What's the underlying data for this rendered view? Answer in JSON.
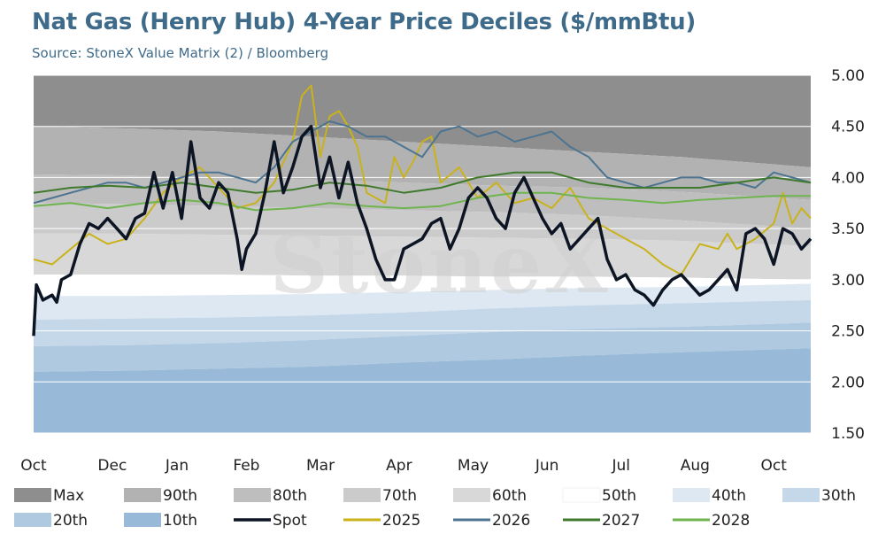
{
  "chart_data": {
    "type": "area",
    "title": "Nat Gas (Henry Hub) 4-Year Price Deciles ($/mmBtu)",
    "subtitle": "Source: StoneX Value Matrix (2) / Bloomberg",
    "watermark": "StoneX",
    "ylim": [
      1.5,
      5.0
    ],
    "y_ticks": [
      "5.00",
      "4.50",
      "4.00",
      "3.50",
      "3.00",
      "2.50",
      "2.00",
      "1.50"
    ],
    "x_tick_labels": [
      "Oct",
      "Dec",
      "Jan",
      "Feb",
      "Mar",
      "Apr",
      "May",
      "Jun",
      "Jul",
      "Aug",
      "Oct"
    ],
    "x_tick_positions": [
      0,
      8.5,
      15.5,
      23,
      31,
      39.5,
      47.5,
      55.5,
      63.5,
      71.5,
      80
    ],
    "x_range": [
      0,
      84
    ],
    "grid": true,
    "legend_position": "bottom",
    "legend": [
      "Max",
      "90th",
      "80th",
      "70th",
      "60th",
      "50th",
      "40th",
      "30th",
      "20th",
      "10th",
      "Spot",
      "2025",
      "2026",
      "2027",
      "2028"
    ],
    "bands": [
      {
        "name": "Max",
        "color": "#8e8e8e",
        "x": [
          0,
          84
        ],
        "y": [
          5.0,
          5.0
        ]
      },
      {
        "name": "90th",
        "color": "#b2b2b2",
        "x": [
          0,
          10,
          20,
          30,
          40,
          50,
          60,
          70,
          84
        ],
        "y": [
          4.5,
          4.48,
          4.45,
          4.4,
          4.35,
          4.3,
          4.25,
          4.2,
          4.1
        ]
      },
      {
        "name": "80th",
        "color": "#bebebe",
        "x": [
          0,
          10,
          20,
          30,
          40,
          50,
          60,
          70,
          84
        ],
        "y": [
          4.03,
          4.02,
          4.0,
          3.98,
          3.95,
          3.92,
          3.9,
          3.86,
          3.78
        ]
      },
      {
        "name": "70th",
        "color": "#cbcbcb",
        "x": [
          0,
          10,
          20,
          30,
          40,
          50,
          60,
          70,
          84
        ],
        "y": [
          3.75,
          3.74,
          3.72,
          3.7,
          3.68,
          3.66,
          3.63,
          3.58,
          3.5
        ]
      },
      {
        "name": "60th",
        "color": "#d8d8d8",
        "x": [
          0,
          10,
          20,
          30,
          40,
          50,
          60,
          70,
          84
        ],
        "y": [
          3.45,
          3.45,
          3.44,
          3.43,
          3.42,
          3.41,
          3.4,
          3.38,
          3.33
        ]
      },
      {
        "name": "50th",
        "color": "#ffffff",
        "x": [
          0,
          10,
          20,
          30,
          40,
          50,
          60,
          70,
          84
        ],
        "y": [
          3.05,
          3.05,
          3.05,
          3.04,
          3.04,
          3.03,
          3.03,
          3.02,
          3.0
        ]
      },
      {
        "name": "40th",
        "color": "#dde8f2",
        "x": [
          0,
          10,
          20,
          30,
          40,
          50,
          60,
          70,
          84
        ],
        "y": [
          2.84,
          2.84,
          2.85,
          2.86,
          2.88,
          2.9,
          2.92,
          2.93,
          2.96
        ]
      },
      {
        "name": "30th",
        "color": "#c5d8e9",
        "x": [
          0,
          10,
          20,
          30,
          40,
          50,
          60,
          70,
          84
        ],
        "y": [
          2.61,
          2.62,
          2.63,
          2.65,
          2.68,
          2.72,
          2.75,
          2.77,
          2.8
        ]
      },
      {
        "name": "20th",
        "color": "#afc9e1",
        "x": [
          0,
          10,
          20,
          30,
          40,
          50,
          60,
          70,
          84
        ],
        "y": [
          2.35,
          2.36,
          2.38,
          2.41,
          2.45,
          2.49,
          2.52,
          2.54,
          2.58
        ]
      },
      {
        "name": "10th",
        "color": "#98b9d8",
        "x": [
          0,
          10,
          20,
          30,
          40,
          50,
          60,
          70,
          84
        ],
        "y": [
          2.1,
          2.11,
          2.13,
          2.15,
          2.19,
          2.22,
          2.26,
          2.29,
          2.33
        ]
      }
    ],
    "series": [
      {
        "name": "Spot",
        "color": "#0d1524",
        "width": 3.5,
        "x": [
          0,
          0.3,
          1,
          2,
          2.5,
          3,
          4,
          5,
          6,
          7,
          8,
          9,
          10,
          11,
          12,
          13,
          14,
          15,
          16,
          17,
          18,
          19,
          20,
          21,
          22,
          22.5,
          23,
          24,
          25,
          26,
          27,
          28,
          29,
          30,
          31,
          32,
          33,
          34,
          35,
          36,
          37,
          38,
          39,
          40,
          41,
          42,
          43,
          44,
          45,
          46,
          47,
          48,
          49,
          50,
          51,
          52,
          53,
          54,
          55,
          56,
          57,
          58,
          59,
          60,
          61,
          62,
          63,
          64,
          65,
          66,
          67,
          68,
          69,
          70,
          71,
          72,
          73,
          74,
          75,
          76,
          77,
          78,
          79,
          80,
          81,
          82,
          83,
          84
        ],
        "y": [
          2.45,
          2.95,
          2.8,
          2.85,
          2.78,
          3.0,
          3.05,
          3.35,
          3.55,
          3.5,
          3.6,
          3.5,
          3.4,
          3.6,
          3.65,
          4.05,
          3.7,
          4.05,
          3.6,
          4.35,
          3.8,
          3.7,
          3.95,
          3.85,
          3.4,
          3.1,
          3.3,
          3.45,
          3.85,
          4.35,
          3.85,
          4.1,
          4.4,
          4.5,
          3.9,
          4.2,
          3.8,
          4.15,
          3.75,
          3.5,
          3.2,
          3.0,
          3.0,
          3.3,
          3.35,
          3.4,
          3.55,
          3.6,
          3.3,
          3.5,
          3.8,
          3.9,
          3.8,
          3.6,
          3.5,
          3.85,
          4.0,
          3.8,
          3.6,
          3.45,
          3.55,
          3.3,
          3.4,
          3.5,
          3.6,
          3.2,
          3.0,
          3.05,
          2.9,
          2.85,
          2.75,
          2.9,
          3.0,
          3.05,
          2.95,
          2.85,
          2.9,
          3.0,
          3.1,
          2.9,
          3.45,
          3.5,
          3.4,
          3.15,
          3.5,
          3.45,
          3.3,
          3.4
        ],
        "ylim_note": ""
      },
      {
        "name": "2025",
        "color": "#c9b21b",
        "width": 2,
        "x": [
          0,
          2,
          4,
          6,
          8,
          10,
          12,
          14,
          16,
          18,
          20,
          22,
          24,
          26,
          28,
          29,
          30,
          31,
          32,
          33,
          34,
          35,
          36,
          37,
          38,
          39,
          40,
          41,
          42,
          43,
          44,
          46,
          48,
          50,
          52,
          54,
          56,
          58,
          60,
          62,
          64,
          66,
          68,
          70,
          72,
          74,
          75,
          76,
          78,
          80,
          81,
          82,
          83,
          84
        ],
        "y": [
          3.2,
          3.15,
          3.3,
          3.45,
          3.35,
          3.4,
          3.6,
          3.85,
          4.0,
          4.1,
          3.9,
          3.7,
          3.75,
          3.95,
          4.35,
          4.8,
          4.9,
          4.2,
          4.6,
          4.65,
          4.5,
          4.3,
          3.85,
          3.8,
          3.75,
          4.2,
          4.0,
          4.15,
          4.35,
          4.4,
          3.95,
          4.1,
          3.8,
          3.95,
          3.75,
          3.8,
          3.7,
          3.9,
          3.6,
          3.5,
          3.4,
          3.3,
          3.15,
          3.05,
          3.35,
          3.3,
          3.45,
          3.3,
          3.4,
          3.55,
          3.85,
          3.55,
          3.7,
          3.6
        ]
      },
      {
        "name": "2026",
        "color": "#4d7491",
        "width": 2,
        "x": [
          0,
          2,
          4,
          6,
          8,
          10,
          12,
          14,
          16,
          18,
          20,
          22,
          24,
          26,
          28,
          30,
          32,
          34,
          36,
          38,
          40,
          42,
          44,
          46,
          48,
          50,
          52,
          54,
          56,
          58,
          60,
          62,
          64,
          66,
          68,
          70,
          72,
          74,
          76,
          78,
          80,
          82,
          84
        ],
        "y": [
          3.75,
          3.8,
          3.85,
          3.9,
          3.95,
          3.95,
          3.9,
          3.95,
          4.0,
          4.05,
          4.05,
          4.0,
          3.95,
          4.1,
          4.35,
          4.45,
          4.55,
          4.5,
          4.4,
          4.4,
          4.3,
          4.2,
          4.45,
          4.5,
          4.4,
          4.45,
          4.35,
          4.4,
          4.45,
          4.3,
          4.2,
          4.0,
          3.95,
          3.9,
          3.95,
          4.0,
          4.0,
          3.95,
          3.95,
          3.9,
          4.05,
          4.0,
          3.95
        ]
      },
      {
        "name": "2027",
        "color": "#3f7a2c",
        "width": 2,
        "x": [
          0,
          4,
          8,
          12,
          16,
          20,
          24,
          28,
          32,
          36,
          40,
          44,
          48,
          52,
          56,
          60,
          64,
          68,
          72,
          76,
          80,
          84
        ],
        "y": [
          3.85,
          3.9,
          3.92,
          3.9,
          3.95,
          3.9,
          3.85,
          3.88,
          3.95,
          3.92,
          3.85,
          3.9,
          4.0,
          4.05,
          4.05,
          3.95,
          3.9,
          3.9,
          3.9,
          3.95,
          4.0,
          3.95
        ]
      },
      {
        "name": "2028",
        "color": "#6fb44e",
        "width": 2,
        "x": [
          0,
          4,
          8,
          12,
          16,
          20,
          24,
          28,
          32,
          36,
          40,
          44,
          48,
          52,
          56,
          60,
          64,
          68,
          72,
          76,
          80,
          84
        ],
        "y": [
          3.72,
          3.75,
          3.7,
          3.75,
          3.78,
          3.75,
          3.68,
          3.7,
          3.75,
          3.72,
          3.7,
          3.72,
          3.8,
          3.85,
          3.85,
          3.8,
          3.78,
          3.75,
          3.78,
          3.8,
          3.82,
          3.82
        ]
      }
    ]
  }
}
